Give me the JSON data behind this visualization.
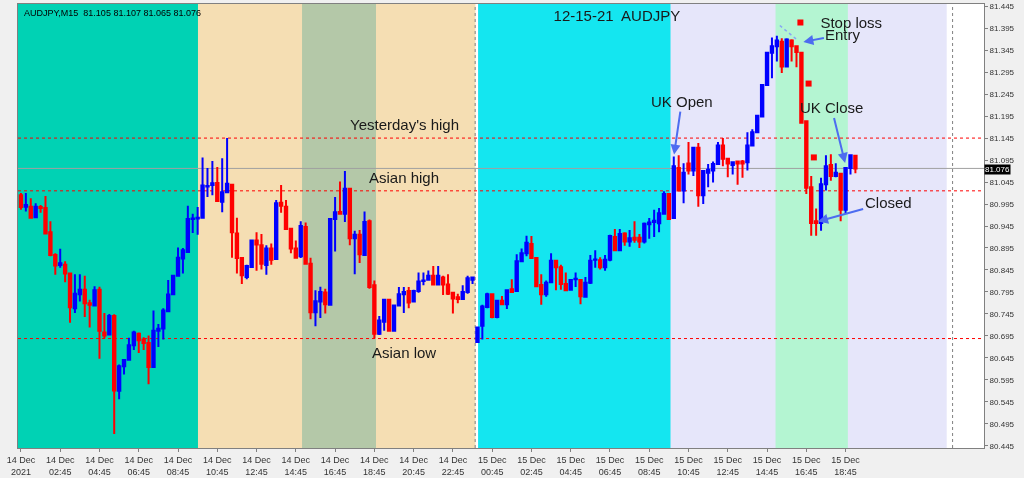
{
  "chart_data": {
    "type": "candlestick",
    "title": "12-15-21  AUDJPY",
    "x": [
      "2021-12-14T00:45",
      "2021-12-14T01:00",
      "2021-12-14T01:15",
      "2021-12-14T01:30",
      "2021-12-14T01:45",
      "2021-12-14T02:00",
      "2021-12-14T02:15",
      "2021-12-14T02:30",
      "2021-12-14T02:45",
      "2021-12-14T03:00",
      "2021-12-14T03:15",
      "2021-12-14T03:30",
      "2021-12-14T03:45",
      "2021-12-14T04:00",
      "2021-12-14T04:15",
      "2021-12-14T04:30",
      "2021-12-14T04:45",
      "2021-12-14T05:00",
      "2021-12-14T05:15",
      "2021-12-14T05:30",
      "2021-12-14T05:45",
      "2021-12-14T06:00",
      "2021-12-14T06:15",
      "2021-12-14T06:30",
      "2021-12-14T06:45",
      "2021-12-14T07:00",
      "2021-12-14T07:15",
      "2021-12-14T07:30",
      "2021-12-14T07:45",
      "2021-12-14T08:00",
      "2021-12-14T08:15",
      "2021-12-14T08:30",
      "2021-12-14T08:45",
      "2021-12-14T09:00",
      "2021-12-14T09:15",
      "2021-12-14T09:30",
      "2021-12-14T09:45",
      "2021-12-14T10:00",
      "2021-12-14T10:15",
      "2021-12-14T10:30",
      "2021-12-14T10:45",
      "2021-12-14T11:00",
      "2021-12-14T11:15",
      "2021-12-14T11:30",
      "2021-12-14T11:45",
      "2021-12-14T12:00",
      "2021-12-14T12:15",
      "2021-12-14T12:30",
      "2021-12-14T12:45",
      "2021-12-14T13:00",
      "2021-12-14T13:15",
      "2021-12-14T13:30",
      "2021-12-14T13:45",
      "2021-12-14T14:00",
      "2021-12-14T14:15",
      "2021-12-14T14:30",
      "2021-12-14T14:45",
      "2021-12-14T15:00",
      "2021-12-14T15:15",
      "2021-12-14T15:30",
      "2021-12-14T15:45",
      "2021-12-14T16:00",
      "2021-12-14T16:15",
      "2021-12-14T16:30",
      "2021-12-14T16:45",
      "2021-12-14T17:00",
      "2021-12-14T17:15",
      "2021-12-14T17:30",
      "2021-12-14T17:45",
      "2021-12-14T18:00",
      "2021-12-14T18:15",
      "2021-12-14T18:30",
      "2021-12-14T18:45",
      "2021-12-14T19:00",
      "2021-12-14T19:15",
      "2021-12-14T19:30",
      "2021-12-14T19:45",
      "2021-12-14T20:00",
      "2021-12-14T20:15",
      "2021-12-14T20:30",
      "2021-12-14T20:45",
      "2021-12-14T21:00",
      "2021-12-14T21:15",
      "2021-12-14T21:30",
      "2021-12-14T21:45",
      "2021-12-14T22:00",
      "2021-12-14T22:15",
      "2021-12-14T22:30",
      "2021-12-14T22:45",
      "2021-12-14T23:00",
      "2021-12-14T23:15",
      "2021-12-14T23:30",
      "2021-12-14T23:45",
      "2021-12-15T00:00",
      "2021-12-15T00:15",
      "2021-12-15T00:30",
      "2021-12-15T00:45",
      "2021-12-15T01:00",
      "2021-12-15T01:15",
      "2021-12-15T01:30",
      "2021-12-15T01:45",
      "2021-12-15T02:00",
      "2021-12-15T02:15",
      "2021-12-15T02:30",
      "2021-12-15T02:45",
      "2021-12-15T03:00",
      "2021-12-15T03:15",
      "2021-12-15T03:30",
      "2021-12-15T03:45",
      "2021-12-15T04:00",
      "2021-12-15T04:15",
      "2021-12-15T04:30",
      "2021-12-15T04:45",
      "2021-12-15T05:00",
      "2021-12-15T05:15",
      "2021-12-15T05:30",
      "2021-12-15T05:45",
      "2021-12-15T06:00",
      "2021-12-15T06:15",
      "2021-12-15T06:30",
      "2021-12-15T06:45",
      "2021-12-15T07:00",
      "2021-12-15T07:15",
      "2021-12-15T07:30",
      "2021-12-15T07:45",
      "2021-12-15T08:00",
      "2021-12-15T08:15",
      "2021-12-15T08:30",
      "2021-12-15T08:45",
      "2021-12-15T09:00",
      "2021-12-15T09:15",
      "2021-12-15T09:30",
      "2021-12-15T09:45",
      "2021-12-15T10:00",
      "2021-12-15T10:15",
      "2021-12-15T10:30",
      "2021-12-15T10:45",
      "2021-12-15T11:00",
      "2021-12-15T11:15",
      "2021-12-15T11:30",
      "2021-12-15T11:45",
      "2021-12-15T12:00",
      "2021-12-15T12:15",
      "2021-12-15T12:30",
      "2021-12-15T12:45",
      "2021-12-15T13:00",
      "2021-12-15T13:15",
      "2021-12-15T13:30",
      "2021-12-15T13:45",
      "2021-12-15T14:00",
      "2021-12-15T14:15",
      "2021-12-15T14:30",
      "2021-12-15T14:45",
      "2021-12-15T15:00",
      "2021-12-15T15:15",
      "2021-12-15T15:30",
      "2021-12-15T15:45",
      "2021-12-15T16:00",
      "2021-12-15T16:15",
      "2021-12-15T16:30",
      "2021-12-15T16:45",
      "2021-12-15T17:00",
      "2021-12-15T17:15",
      "2021-12-15T17:30",
      "2021-12-15T17:45",
      "2021-12-15T18:00",
      "2021-12-15T18:15",
      "2021-12-15T18:30",
      "2021-12-15T18:45",
      "2021-12-15T19:00",
      "2021-12-15T19:15"
    ],
    "ohlc": [
      [
        81.015,
        81.02,
        80.982,
        80.988
      ],
      [
        80.989,
        81.02,
        80.978,
        80.993
      ],
      [
        80.989,
        81.008,
        80.964,
        80.964
      ],
      [
        80.965,
        80.997,
        80.964,
        80.989
      ],
      [
        80.988,
        80.993,
        80.975,
        80.986
      ],
      [
        80.986,
        81.013,
        80.928,
        80.928
      ],
      [
        80.931,
        80.956,
        80.876,
        80.879
      ],
      [
        80.879,
        80.883,
        80.834,
        80.855
      ],
      [
        80.856,
        80.893,
        80.85,
        80.86
      ],
      [
        80.857,
        80.865,
        80.817,
        80.837
      ],
      [
        80.837,
        80.837,
        80.725,
        80.76
      ],
      [
        80.758,
        80.835,
        80.747,
        80.791
      ],
      [
        80.79,
        80.835,
        80.773,
        80.8
      ],
      [
        80.8,
        80.832,
        80.738,
        80.769
      ],
      [
        80.769,
        80.777,
        80.714,
        80.766
      ],
      [
        80.764,
        80.808,
        80.762,
        80.799
      ],
      [
        80.8,
        80.807,
        80.643,
        80.707
      ],
      [
        80.703,
        80.747,
        80.689,
        80.696
      ],
      [
        80.698,
        80.745,
        80.697,
        80.74
      ],
      [
        80.74,
        80.744,
        80.472,
        80.571
      ],
      [
        80.57,
        80.63,
        80.551,
        80.626
      ],
      [
        80.626,
        80.641,
        80.607,
        80.64
      ],
      [
        80.641,
        80.691,
        80.641,
        80.674
      ],
      [
        80.674,
        80.707,
        80.663,
        80.703
      ],
      [
        80.7,
        80.703,
        80.656,
        80.685
      ],
      [
        80.687,
        80.692,
        80.663,
        80.679
      ],
      [
        80.679,
        80.696,
        80.585,
        80.624
      ],
      [
        80.624,
        80.753,
        80.624,
        80.707
      ],
      [
        80.707,
        80.722,
        80.67,
        80.711
      ],
      [
        80.712,
        80.758,
        80.687,
        80.753
      ],
      [
        80.751,
        80.822,
        80.749,
        80.789
      ],
      [
        80.79,
        80.832,
        80.79,
        80.832
      ],
      [
        80.832,
        80.896,
        80.832,
        80.873
      ],
      [
        80.871,
        80.895,
        80.837,
        80.89
      ],
      [
        80.886,
        80.991,
        80.886,
        80.961
      ],
      [
        80.961,
        80.973,
        80.929,
        80.962
      ],
      [
        80.962,
        80.988,
        80.925,
        80.964
      ],
      [
        80.964,
        81.101,
        80.964,
        81.037
      ],
      [
        81.035,
        81.077,
        81.011,
        81.036
      ],
      [
        81.038,
        81.093,
        81.015,
        81.042
      ],
      [
        81.043,
        81.079,
        81.0,
        81.002
      ],
      [
        81.0,
        81.099,
        80.976,
        81.022
      ],
      [
        81.022,
        81.145,
        81.022,
        81.041
      ],
      [
        81.039,
        81.039,
        80.873,
        80.931
      ],
      [
        80.928,
        80.964,
        80.837,
        80.872
      ],
      [
        80.872,
        80.873,
        80.813,
        80.833
      ],
      [
        80.829,
        80.857,
        80.824,
        80.854
      ],
      [
        80.852,
        80.914,
        80.85,
        80.912
      ],
      [
        80.912,
        80.931,
        80.843,
        80.903
      ],
      [
        80.901,
        80.927,
        80.846,
        80.859
      ],
      [
        80.856,
        80.901,
        80.834,
        80.894
      ],
      [
        80.894,
        80.905,
        80.857,
        80.868
      ],
      [
        80.87,
        81.004,
        80.868,
        80.997
      ],
      [
        80.998,
        81.038,
        80.975,
        80.991
      ],
      [
        80.989,
        81.004,
        80.938,
        80.938
      ],
      [
        80.939,
        80.939,
        80.883,
        80.894
      ],
      [
        80.894,
        80.912,
        80.872,
        80.873
      ],
      [
        80.876,
        80.956,
        80.872,
        80.945
      ],
      [
        80.943,
        80.953,
        80.859,
        80.859
      ],
      [
        80.859,
        80.873,
        80.733,
        80.749
      ],
      [
        80.749,
        80.799,
        80.717,
        80.774
      ],
      [
        80.773,
        80.807,
        80.736,
        80.795
      ],
      [
        80.794,
        80.802,
        80.746,
        80.767
      ],
      [
        80.766,
        80.961,
        80.766,
        80.961
      ],
      [
        80.961,
        81.011,
        80.887,
        80.976
      ],
      [
        80.977,
        81.046,
        80.971,
        80.973
      ],
      [
        80.973,
        81.07,
        80.954,
        81.03
      ],
      [
        81.03,
        81.03,
        80.901,
        80.917
      ],
      [
        80.917,
        80.934,
        80.835,
        80.925
      ],
      [
        80.925,
        80.936,
        80.861,
        80.881
      ],
      [
        80.879,
        80.978,
        80.879,
        80.954
      ],
      [
        80.956,
        80.96,
        80.802,
        80.806
      ],
      [
        80.81,
        80.821,
        80.689,
        80.7
      ],
      [
        80.7,
        80.74,
        80.697,
        80.73
      ],
      [
        80.727,
        80.778,
        80.707,
        80.777
      ],
      [
        80.777,
        80.778,
        80.705,
        80.707
      ],
      [
        80.707,
        80.766,
        80.705,
        80.764
      ],
      [
        80.764,
        80.806,
        80.762,
        80.79
      ],
      [
        80.79,
        80.806,
        80.747,
        80.795
      ],
      [
        80.797,
        80.806,
        80.758,
        80.771
      ],
      [
        80.773,
        80.8,
        80.773,
        80.797
      ],
      [
        80.797,
        80.839,
        80.793,
        80.819
      ],
      [
        80.82,
        80.839,
        80.81,
        80.821
      ],
      [
        80.823,
        80.844,
        80.821,
        80.832
      ],
      [
        80.832,
        80.854,
        80.81,
        80.812
      ],
      [
        80.812,
        80.854,
        80.81,
        80.832
      ],
      [
        80.828,
        80.832,
        80.788,
        80.812
      ],
      [
        80.812,
        80.835,
        80.788,
        80.791
      ],
      [
        80.793,
        80.795,
        80.746,
        80.78
      ],
      [
        80.783,
        80.791,
        80.769,
        80.779
      ],
      [
        80.779,
        80.81,
        80.777,
        80.795
      ],
      [
        80.795,
        80.832,
        80.791,
        80.826
      ],
      [
        80.823,
        80.83,
        80.813,
        80.828
      ],
      [
        80.681,
        80.714,
        80.681,
        80.714
      ],
      [
        80.718,
        80.766,
        80.687,
        80.762
      ],
      [
        80.761,
        80.793,
        80.758,
        80.79
      ],
      [
        80.79,
        80.791,
        80.735,
        80.738
      ],
      [
        80.738,
        80.777,
        80.735,
        80.775
      ],
      [
        80.775,
        80.786,
        80.767,
        80.767
      ],
      [
        80.767,
        80.8,
        80.756,
        80.799
      ],
      [
        80.801,
        80.824,
        80.795,
        80.795
      ],
      [
        80.797,
        80.881,
        80.797,
        80.865
      ],
      [
        80.865,
        80.894,
        80.863,
        80.883
      ],
      [
        80.883,
        80.923,
        80.876,
        80.907
      ],
      [
        80.904,
        80.922,
        80.872,
        80.872
      ],
      [
        80.872,
        80.872,
        80.808,
        80.808
      ],
      [
        80.811,
        80.835,
        80.766,
        80.79
      ],
      [
        80.79,
        80.821,
        80.784,
        80.816
      ],
      [
        80.817,
        80.883,
        80.817,
        80.866
      ],
      [
        80.866,
        80.868,
        80.799,
        80.851
      ],
      [
        80.851,
        80.857,
        80.8,
        80.813
      ],
      [
        80.813,
        80.839,
        80.799,
        80.799
      ],
      [
        80.8,
        80.824,
        80.799,
        80.822
      ],
      [
        80.824,
        80.839,
        80.806,
        80.825
      ],
      [
        80.822,
        80.824,
        80.767,
        80.785
      ],
      [
        80.784,
        80.829,
        80.784,
        80.816
      ],
      [
        80.816,
        80.879,
        80.813,
        80.866
      ],
      [
        80.868,
        80.89,
        80.85,
        80.869
      ],
      [
        80.867,
        80.874,
        80.846,
        80.851
      ],
      [
        80.851,
        80.879,
        80.843,
        80.868
      ],
      [
        80.868,
        80.925,
        80.865,
        80.922
      ],
      [
        80.92,
        80.938,
        80.888,
        80.89
      ],
      [
        80.89,
        80.938,
        80.89,
        80.927
      ],
      [
        80.928,
        80.931,
        80.9,
        80.91
      ],
      [
        80.91,
        80.936,
        80.898,
        80.917
      ],
      [
        80.918,
        80.956,
        80.907,
        80.914
      ],
      [
        80.918,
        80.927,
        80.895,
        80.91
      ],
      [
        80.91,
        80.953,
        80.905,
        80.95
      ],
      [
        80.949,
        80.963,
        80.916,
        80.953
      ],
      [
        80.954,
        80.982,
        80.92,
        80.957
      ],
      [
        80.951,
        80.986,
        80.931,
        80.974
      ],
      [
        80.973,
        81.024,
        80.971,
        81.018
      ],
      [
        81.018,
        81.02,
        80.961,
        80.961
      ],
      [
        80.963,
        81.103,
        80.963,
        81.081
      ],
      [
        81.077,
        81.106,
        81.026,
        81.026
      ],
      [
        81.026,
        81.088,
        80.997,
        81.066
      ],
      [
        81.087,
        81.136,
        81.062,
        81.071
      ],
      [
        81.071,
        81.123,
        81.059,
        81.123
      ],
      [
        81.123,
        81.134,
        80.989,
        81.015
      ],
      [
        81.015,
        81.071,
        80.995,
        81.07
      ],
      [
        81.066,
        81.086,
        81.033,
        81.073
      ],
      [
        81.071,
        81.092,
        81.044,
        81.086
      ],
      [
        81.086,
        81.136,
        81.085,
        81.128
      ],
      [
        81.128,
        81.145,
        81.081,
        81.098
      ],
      [
        81.098,
        81.099,
        81.056,
        81.087
      ],
      [
        81.084,
        81.092,
        81.062,
        81.09
      ],
      [
        81.092,
        81.092,
        81.039,
        81.087
      ],
      [
        81.092,
        81.095,
        81.055,
        81.087
      ],
      [
        81.09,
        81.158,
        81.071,
        81.128
      ],
      [
        81.128,
        81.165,
        81.127,
        81.158
      ],
      [
        81.158,
        81.198,
        81.156,
        81.196
      ],
      [
        81.194,
        81.268,
        81.193,
        81.266
      ],
      [
        81.266,
        81.341,
        81.264,
        81.339
      ],
      [
        81.339,
        81.374,
        81.281,
        81.354
      ],
      [
        81.354,
        81.378,
        81.319,
        81.367
      ],
      [
        81.364,
        81.372,
        81.293,
        81.308
      ],
      [
        81.308,
        81.372,
        81.306,
        81.369
      ],
      [
        81.367,
        81.37,
        81.319,
        81.354
      ],
      [
        81.354,
        81.356,
        81.306,
        81.341
      ],
      [
        81.339,
        81.341,
        81.18,
        81.18
      ],
      [
        81.183,
        81.183,
        81.018,
        81.032
      ],
      [
        81.033,
        81.059,
        80.923,
        80.952
      ],
      [
        80.956,
        80.985,
        80.923,
        80.952
      ],
      [
        80.952,
        81.055,
        80.934,
        81.04
      ],
      [
        81.04,
        81.106,
        81.026,
        81.081
      ],
      [
        81.084,
        81.108,
        81.048,
        81.059
      ],
      [
        81.059,
        81.088,
        81.056,
        81.066
      ],
      [
        81.064,
        81.066,
        80.956,
        80.982
      ],
      [
        80.982,
        81.077,
        80.974,
        81.077
      ],
      [
        81.077,
        81.106,
        81.062,
        81.106
      ],
      [
        81.105,
        81.107,
        81.065,
        81.076
      ]
    ],
    "colors": [
      "#ff0000",
      "#0000ff",
      "#ff0000",
      "#0000ff",
      "#ff0000",
      "#ff0000",
      "#ff0000",
      "#ff0000",
      "#0000ff",
      "#ff0000",
      "#ff0000",
      "#0000ff",
      "#0000ff",
      "#ff0000",
      "#ff0000",
      "#0000ff",
      "#ff0000",
      "#ff0000",
      "#0000ff",
      "#ff0000",
      "#0000ff",
      "#0000ff",
      "#0000ff",
      "#0000ff",
      "#ff0000",
      "#ff0000",
      "#ff0000",
      "#0000ff",
      "#0000ff",
      "#0000ff",
      "#0000ff",
      "#0000ff",
      "#0000ff",
      "#0000ff",
      "#0000ff",
      "#0000ff",
      "#0000ff",
      "#0000ff",
      "#0000ff",
      "#0000ff",
      "#ff0000",
      "#0000ff",
      "#0000ff",
      "#ff0000",
      "#ff0000",
      "#ff0000",
      "#0000ff",
      "#0000ff",
      "#ff0000",
      "#ff0000",
      "#0000ff",
      "#ff0000",
      "#0000ff",
      "#ff0000",
      "#ff0000",
      "#ff0000",
      "#ff0000",
      "#0000ff",
      "#ff0000",
      "#ff0000",
      "#0000ff",
      "#0000ff",
      "#ff0000",
      "#0000ff",
      "#0000ff",
      "#ff0000",
      "#0000ff",
      "#ff0000",
      "#0000ff",
      "#ff0000",
      "#0000ff",
      "#ff0000",
      "#ff0000",
      "#0000ff",
      "#0000ff",
      "#ff0000",
      "#0000ff",
      "#0000ff",
      "#0000ff",
      "#ff0000",
      "#0000ff",
      "#0000ff",
      "#0000ff",
      "#0000ff",
      "#ff0000",
      "#0000ff",
      "#ff0000",
      "#ff0000",
      "#ff0000",
      "#ff0000",
      "#0000ff",
      "#0000ff",
      "#0000ff",
      "#0000ff",
      "#0000ff",
      "#0000ff",
      "#ff0000",
      "#0000ff",
      "#ff0000",
      "#0000ff",
      "#ff0000",
      "#0000ff",
      "#0000ff",
      "#0000ff",
      "#ff0000",
      "#ff0000",
      "#ff0000",
      "#0000ff",
      "#0000ff",
      "#ff0000",
      "#ff0000",
      "#ff0000",
      "#0000ff",
      "#0000ff",
      "#ff0000",
      "#0000ff",
      "#0000ff",
      "#0000ff",
      "#ff0000",
      "#0000ff",
      "#0000ff",
      "#ff0000",
      "#0000ff",
      "#ff0000",
      "#0000ff",
      "#ff0000",
      "#ff0000",
      "#0000ff",
      "#0000ff",
      "#0000ff",
      "#0000ff",
      "#0000ff",
      "#ff0000",
      "#0000ff",
      "#ff0000",
      "#0000ff",
      "#ff0000",
      "#0000ff",
      "#ff0000",
      "#0000ff",
      "#0000ff",
      "#0000ff",
      "#0000ff",
      "#ff0000",
      "#ff0000",
      "#0000ff",
      "#ff0000",
      "#ff0000",
      "#0000ff",
      "#0000ff",
      "#0000ff",
      "#0000ff",
      "#0000ff",
      "#0000ff",
      "#0000ff",
      "#ff0000",
      "#0000ff",
      "#ff0000",
      "#ff0000",
      "#ff0000",
      "#ff0000",
      "#ff0000",
      "#ff0000",
      "#0000ff",
      "#0000ff",
      "#ff0000",
      "#0000ff",
      "#ff0000",
      "#0000ff",
      "#0000ff",
      "#ff0000"
    ],
    "series": [
      {
        "name": "Stop loss",
        "type": "scatter",
        "color": "#ff0000",
        "x": [
          "2021-12-15T16:52",
          "2021-12-15T17:08"
        ],
        "values": [
          81.269,
          81.101
        ]
      },
      {
        "type": "line",
        "color": "#87a5f5",
        "line_style": "dotted",
        "x": [
          "2021-12-15T15:24",
          "2021-12-15T16:18"
        ],
        "values": [
          81.401,
          81.368
        ]
      }
    ],
    "xlim": [
      "2021-12-14T00:36",
      "2021-12-16T01:48"
    ],
    "xticks": [
      {
        "value": "2021-12-14T00:45",
        "label": "14 Dec 2021"
      },
      {
        "value": "2021-12-14T02:45",
        "label": "14 Dec 02:45"
      },
      {
        "value": "2021-12-14T04:45",
        "label": "14 Dec 04:45"
      },
      {
        "value": "2021-12-14T06:45",
        "label": "14 Dec 06:45"
      },
      {
        "value": "2021-12-14T08:45",
        "label": "14 Dec 08:45"
      },
      {
        "value": "2021-12-14T10:45",
        "label": "14 Dec 10:45"
      },
      {
        "value": "2021-12-14T12:45",
        "label": "14 Dec 12:45"
      },
      {
        "value": "2021-12-14T14:45",
        "label": "14 Dec 14:45"
      },
      {
        "value": "2021-12-14T16:45",
        "label": "14 Dec 16:45"
      },
      {
        "value": "2021-12-14T18:45",
        "label": "14 Dec 18:45"
      },
      {
        "value": "2021-12-14T20:45",
        "label": "14 Dec 20:45"
      },
      {
        "value": "2021-12-14T22:45",
        "label": "14 Dec 22:45"
      },
      {
        "value": "2021-12-15T00:45",
        "label": "15 Dec 00:45"
      },
      {
        "value": "2021-12-15T02:45",
        "label": "15 Dec 02:45"
      },
      {
        "value": "2021-12-15T04:45",
        "label": "15 Dec 04:45"
      },
      {
        "value": "2021-12-15T06:45",
        "label": "15 Dec 06:45"
      },
      {
        "value": "2021-12-15T08:45",
        "label": "15 Dec 08:45"
      },
      {
        "value": "2021-12-15T10:45",
        "label": "15 Dec 10:45"
      },
      {
        "value": "2021-12-15T12:45",
        "label": "15 Dec 12:45"
      },
      {
        "value": "2021-12-15T14:45",
        "label": "15 Dec 14:45"
      },
      {
        "value": "2021-12-15T16:45",
        "label": "15 Dec 16:45"
      },
      {
        "value": "2021-12-15T18:45",
        "label": "15 Dec 18:45"
      }
    ],
    "ylim": [
      80.44,
      81.45
    ],
    "yticks": [
      81.445,
      81.395,
      81.345,
      81.295,
      81.245,
      81.195,
      81.145,
      81.095,
      81.045,
      80.995,
      80.945,
      80.895,
      80.845,
      80.795,
      80.745,
      80.695,
      80.645,
      80.595,
      80.545,
      80.495,
      80.445
    ],
    "grid": false,
    "legend": "top right",
    "bands": [
      {
        "axis": "x",
        "from": "2021-12-14T00:36",
        "to": "2021-12-14T23:54",
        "color": "#f5deb3"
      },
      {
        "axis": "x",
        "from": "2021-12-14T00:36",
        "to": "2021-12-14T09:46",
        "color": "#00d2b4"
      },
      {
        "axis": "x",
        "from": "2021-12-14T15:04",
        "to": "2021-12-14T18:50",
        "color": "#b4c8a8"
      },
      {
        "axis": "x",
        "from": "2021-12-15T00:02",
        "to": "2021-12-15T23:54",
        "color": "#e6e6fa"
      },
      {
        "axis": "x",
        "from": "2021-12-15T00:02",
        "to": "2021-12-15T09:50",
        "color": "#14e6f0"
      },
      {
        "axis": "x",
        "from": "2021-12-15T15:11",
        "to": "2021-12-15T18:52",
        "color": "#b4f5d2"
      }
    ],
    "ref_lines": [
      {
        "axis": "y",
        "value": 81.145,
        "label": "Yesterday's high",
        "color": "#ff0000",
        "line_style": "dotted"
      },
      {
        "axis": "y",
        "value": 81.025,
        "label": "Asian high",
        "color": "#ff0000",
        "line_style": "dotted"
      },
      {
        "axis": "y",
        "value": 80.689,
        "label": "Asian low",
        "color": "#ff0000",
        "line_style": "dotted"
      },
      {
        "axis": "y",
        "value": 81.076,
        "color": "#a0a0a0",
        "line_style": "solid"
      },
      {
        "axis": "x",
        "value": "2021-12-14T23:53",
        "color": "#808080",
        "line_style": "dotted"
      },
      {
        "axis": "x",
        "value": "2021-12-16T00:12",
        "color": "#808080",
        "line_style": "dotted"
      }
    ],
    "annotations": [
      "AUDJPY,M15  81.105 81.107 81.065 81.076",
      {
        "text": "81.076",
        "y": 81.076
      },
      {
        "text": "UK Open",
        "x": "2021-12-15T10:00",
        "y": 81.103
      },
      {
        "text": "Entry",
        "x": "2021-12-15T16:30",
        "y": 81.363
      },
      {
        "text": "UK Close",
        "x": "2021-12-15T18:45",
        "y": 81.084
      },
      {
        "text": "Closed",
        "x": "2021-12-15T17:15",
        "y": 80.954
      }
    ]
  }
}
